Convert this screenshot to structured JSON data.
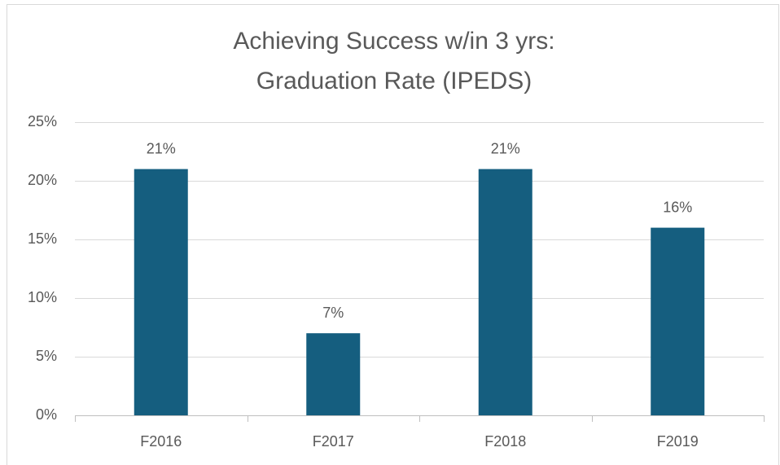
{
  "chart_data": {
    "type": "bar",
    "title": [
      "Achieving Success w/in 3 yrs:",
      "Graduation Rate (IPEDS)"
    ],
    "categories": [
      "F2016",
      "F2017",
      "F2018",
      "F2019"
    ],
    "values": [
      21,
      7,
      21,
      16
    ],
    "value_labels": [
      "21%",
      "7%",
      "21%",
      "16%"
    ],
    "color": "#155e7f",
    "ylim": [
      0,
      25
    ],
    "yticks": [
      {
        "value": 0,
        "label": "0%"
      },
      {
        "value": 5,
        "label": "5%"
      },
      {
        "value": 10,
        "label": "10%"
      },
      {
        "value": 15,
        "label": "15%"
      },
      {
        "value": 20,
        "label": "20%"
      },
      {
        "value": 25,
        "label": "25%"
      }
    ],
    "grid": true
  }
}
